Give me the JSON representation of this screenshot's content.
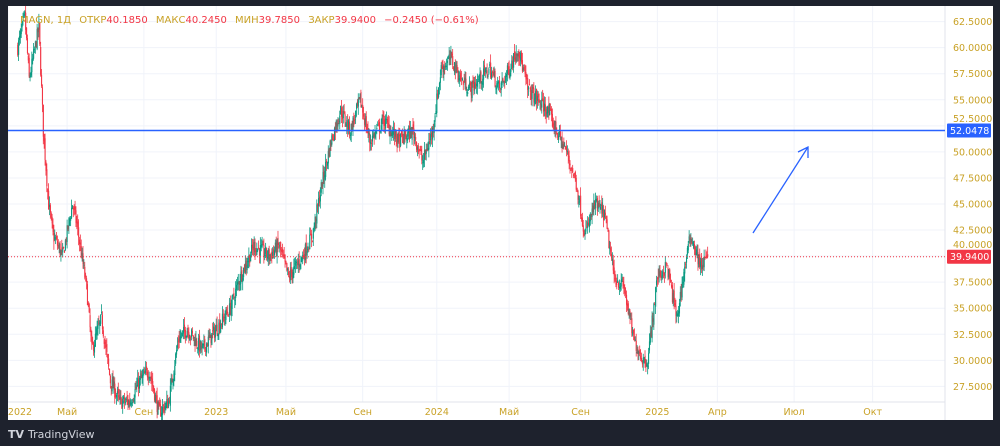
{
  "legend": {
    "symbol": "MAGN, 1Д",
    "open_label": "ОТКР",
    "open": "40.1850",
    "high_label": "МАКС",
    "high": "40.2450",
    "low_label": "МИН",
    "low": "39.7850",
    "close_label": "ЗАКР",
    "close": "39.9400",
    "change": "−0.2450 (−0.61%)"
  },
  "brand": {
    "name": "TradingView"
  },
  "colors": {
    "up": "#089981",
    "down": "#f23645",
    "line": "#2962ff",
    "axis_text": "#c9a227",
    "grid": "#f0f3fa"
  },
  "chart_data": {
    "type": "candlestick",
    "ylim": [
      26,
      64
    ],
    "y_ticks": [
      "27.5000",
      "30.0000",
      "32.5000",
      "35.0000",
      "37.5000",
      "40.0000",
      "42.5000",
      "45.0000",
      "47.5000",
      "50.0000",
      "52.5000",
      "55.0000",
      "57.5000",
      "60.0000",
      "62.5000"
    ],
    "x_ticks": [
      {
        "label": "2022",
        "day": -11
      },
      {
        "label": "Май",
        "day": 56
      },
      {
        "label": "Сен",
        "day": 143
      },
      {
        "label": "2023",
        "day": 225
      },
      {
        "label": "Май",
        "day": 304
      },
      {
        "label": "Сен",
        "day": 391
      },
      {
        "label": "2024",
        "day": 475
      },
      {
        "label": "Май",
        "day": 557
      },
      {
        "label": "Сен",
        "day": 638
      },
      {
        "label": "2025",
        "day": 725
      },
      {
        "label": "Апр",
        "day": 793
      },
      {
        "label": "Июл",
        "day": 880
      },
      {
        "label": "Окт",
        "day": 969
      }
    ],
    "x_range_days": [
      -11,
      1051
    ],
    "price_path": [
      [
        0,
        60
      ],
      [
        8,
        63
      ],
      [
        13,
        57
      ],
      [
        24,
        62
      ],
      [
        29,
        52
      ],
      [
        35,
        45
      ],
      [
        40,
        42
      ],
      [
        51,
        40
      ],
      [
        62,
        45
      ],
      [
        67,
        43
      ],
      [
        78,
        37
      ],
      [
        84,
        31
      ],
      [
        95,
        34
      ],
      [
        105,
        28
      ],
      [
        116,
        26
      ],
      [
        127,
        26
      ],
      [
        138,
        28
      ],
      [
        149,
        29
      ],
      [
        160,
        25
      ],
      [
        171,
        26
      ],
      [
        182,
        32
      ],
      [
        192,
        33
      ],
      [
        209,
        31
      ],
      [
        225,
        33
      ],
      [
        241,
        35
      ],
      [
        252,
        38
      ],
      [
        268,
        41
      ],
      [
        285,
        40
      ],
      [
        296,
        41
      ],
      [
        307,
        38
      ],
      [
        323,
        40
      ],
      [
        334,
        42
      ],
      [
        345,
        47
      ],
      [
        355,
        51
      ],
      [
        366,
        54
      ],
      [
        377,
        52
      ],
      [
        388,
        55
      ],
      [
        399,
        51
      ],
      [
        415,
        53
      ],
      [
        432,
        51
      ],
      [
        448,
        52
      ],
      [
        459,
        49
      ],
      [
        470,
        52
      ],
      [
        480,
        58
      ],
      [
        491,
        59
      ],
      [
        502,
        57
      ],
      [
        513,
        56
      ],
      [
        524,
        57
      ],
      [
        535,
        58
      ],
      [
        546,
        56
      ],
      [
        557,
        58
      ],
      [
        567,
        60
      ],
      [
        578,
        56
      ],
      [
        589,
        55
      ],
      [
        600,
        54
      ],
      [
        611,
        52
      ],
      [
        622,
        50
      ],
      [
        633,
        47
      ],
      [
        643,
        42
      ],
      [
        654,
        45
      ],
      [
        665,
        44
      ],
      [
        676,
        38
      ],
      [
        687,
        37
      ],
      [
        698,
        32
      ],
      [
        709,
        30
      ],
      [
        714,
        30
      ],
      [
        725,
        38
      ],
      [
        736,
        39
      ],
      [
        747,
        34
      ],
      [
        758,
        40
      ],
      [
        763,
        42
      ],
      [
        774,
        39
      ],
      [
        782,
        39.94
      ]
    ],
    "last_price": {
      "value": 39.94,
      "label": "39.9400"
    },
    "horizontal_line": {
      "value": 52.0478,
      "label": "52.0478"
    },
    "annotation": "arrow pointing up toward the horizontal line"
  }
}
